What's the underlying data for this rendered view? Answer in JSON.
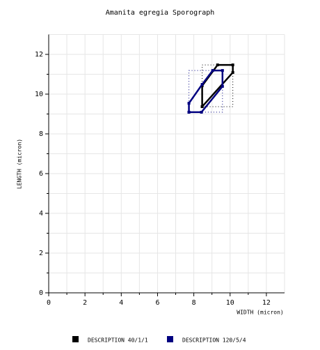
{
  "chart_data": {
    "type": "line",
    "title": "Amanita egregia Sporograph",
    "xlabel": "WIDTH (micron)",
    "ylabel": "LENGTH (micron)",
    "xlim": [
      0,
      13
    ],
    "ylim": [
      0,
      13
    ],
    "xticks": [
      0,
      2,
      4,
      6,
      8,
      10,
      12
    ],
    "yticks": [
      0,
      2,
      4,
      6,
      8,
      10,
      12
    ],
    "grid": true,
    "legend": "bottom",
    "series": [
      {
        "name": "DESCRIPTION 40/1/1",
        "color": "#000000",
        "x": [
          8.46,
          8.46,
          9.31,
          10.15,
          10.15,
          8.46
        ],
        "y": [
          9.37,
          10.42,
          11.47,
          11.47,
          11.09,
          9.37
        ]
      },
      {
        "name": "DESCRIPTION 120/5/4",
        "color": "#000080",
        "x": [
          7.73,
          7.73,
          8.46,
          9.04,
          9.58,
          9.58,
          8.42,
          7.73
        ],
        "y": [
          9.09,
          9.54,
          10.49,
          11.19,
          11.19,
          10.39,
          9.09,
          9.09
        ]
      }
    ]
  }
}
